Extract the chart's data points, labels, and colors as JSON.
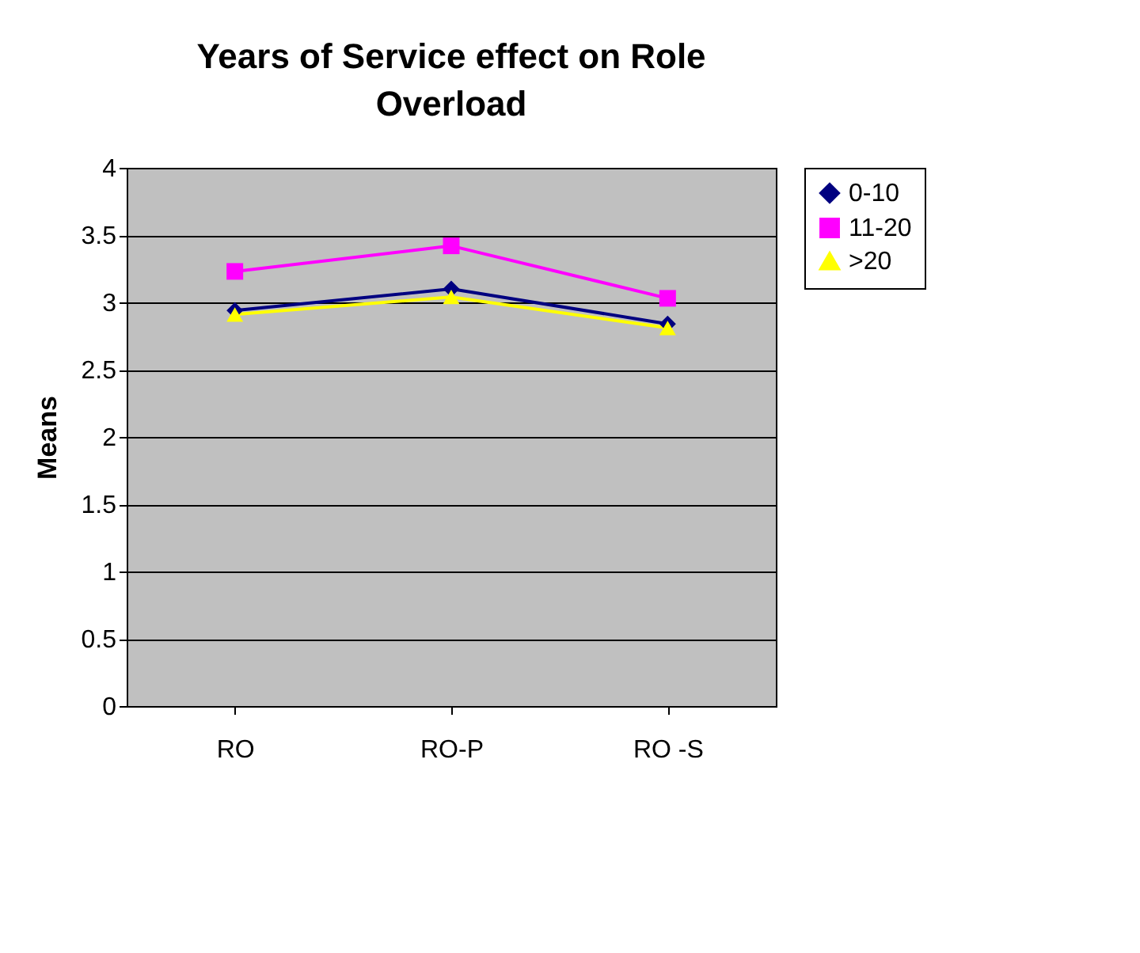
{
  "chart_data": {
    "type": "line",
    "title": "Years of Service effect on Role Overload",
    "ylabel": "Means",
    "categories": [
      "RO",
      "RO-P",
      "RO -S"
    ],
    "series": [
      {
        "name": "0-10",
        "color": "#000080",
        "values": [
          2.94,
          3.1,
          2.84
        ],
        "marker": "diamond"
      },
      {
        "name": "11-20",
        "color": "#ff00ff",
        "values": [
          3.23,
          3.42,
          3.03
        ],
        "marker": "square"
      },
      {
        "name": ">20",
        "color": "#ffff00",
        "values": [
          2.91,
          3.04,
          2.81
        ],
        "marker": "triangle"
      }
    ],
    "ylim": [
      0,
      4
    ],
    "yticks": [
      0,
      0.5,
      1,
      1.5,
      2,
      2.5,
      3,
      3.5,
      4
    ],
    "grid": "y",
    "legend": "right",
    "line_style": "solid"
  }
}
